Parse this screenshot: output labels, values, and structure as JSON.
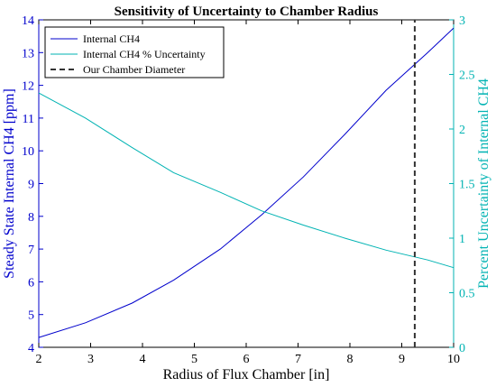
{
  "chart_data": {
    "type": "line",
    "title": "Sensitivity of Uncertainty to Chamber Radius",
    "xlabel": "Radius of Flux Chamber [in]",
    "ylabel_left": "Steady State Internal CH4 [ppm]",
    "ylabel_right": "Percent Uncertainty of Internal CH4",
    "xlim": [
      2,
      10
    ],
    "ylim_left": [
      4,
      14
    ],
    "ylim_right": [
      0,
      3
    ],
    "x_ticks": [
      "2",
      "3",
      "4",
      "5",
      "6",
      "7",
      "8",
      "9",
      "10"
    ],
    "y_left_ticks": [
      "4",
      "5",
      "6",
      "7",
      "8",
      "9",
      "10",
      "11",
      "12",
      "13",
      "14"
    ],
    "y_right_ticks": [
      "0",
      "0.5",
      "1",
      "1.5",
      "2",
      "2.5",
      "3"
    ],
    "legend_position": "top-left",
    "series": [
      {
        "name": "Internal CH4",
        "axis": "left",
        "color": "#0000cc",
        "style": "solid",
        "x": [
          2,
          2.9,
          3.8,
          4.6,
          5.5,
          6.3,
          7.1,
          7.9,
          8.7,
          9.5,
          10
        ],
        "y": [
          4.3,
          4.75,
          5.35,
          6.05,
          7.0,
          8.05,
          9.2,
          10.5,
          11.85,
          13.0,
          13.75
        ]
      },
      {
        "name": "Internal CH4 % Uncertainty",
        "axis": "right",
        "color": "#00b3b3",
        "style": "solid",
        "x": [
          2,
          2.9,
          3.8,
          4.6,
          5.5,
          6.3,
          7.1,
          7.9,
          8.7,
          9.5,
          10
        ],
        "y": [
          2.33,
          2.1,
          1.83,
          1.6,
          1.42,
          1.25,
          1.12,
          1.0,
          0.89,
          0.8,
          0.73
        ]
      },
      {
        "name": "Our Chamber Diameter",
        "axis": "left",
        "color": "#333333",
        "style": "dashed",
        "x": [
          9.25,
          9.25
        ],
        "y": [
          4,
          14
        ]
      }
    ]
  }
}
